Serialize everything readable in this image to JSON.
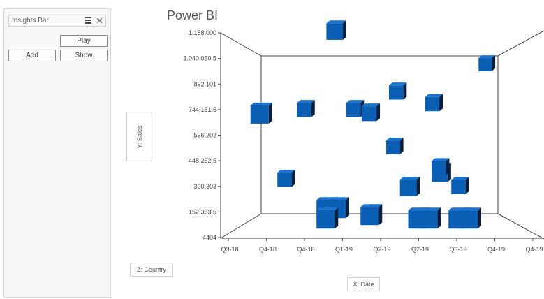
{
  "insights_bar": {
    "title": "Insights Bar",
    "menu_icon": "hamburger-icon",
    "close_icon": "close-icon",
    "play_label": "Play",
    "add_label": "Add",
    "show_label": "Show"
  },
  "chart_title": "Power BI",
  "axis_buttons": {
    "y": "Y: Sales",
    "z": "Z: Country",
    "x": "X: Date"
  },
  "colors": {
    "cube_front": "#0a5fb4",
    "cube_side": "#0b1f3d",
    "cube_top": "#1a73d0",
    "frame": "#444444"
  },
  "chart_data": {
    "type": "scatter",
    "title": "Power BI",
    "xlabel": "X: Date",
    "ylabel": "Y: Sales",
    "zlabel": "Z: Country",
    "x_categories": [
      "Q3-18",
      "Q4-18",
      "Q4-18",
      "Q1-19",
      "Q2-19",
      "Q2-19",
      "Q3-19",
      "Q4-19",
      "Q4-19"
    ],
    "y_ticks": [
      "4404",
      "152,353.5",
      "300,303",
      "448,252.5",
      "596,202",
      "744,151.5",
      "892,101",
      "1,040,050.5",
      "1,188,000"
    ],
    "ylim": [
      4404,
      1188000
    ],
    "points": [
      {
        "x": 0.7,
        "y": 665000,
        "depth": 1
      },
      {
        "x": 1.6,
        "y": 240000,
        "depth": 0.3
      },
      {
        "x": 2.2,
        "y": 720000,
        "depth": 0.3
      },
      {
        "x": 2.5,
        "y": 120000,
        "depth": 1
      },
      {
        "x": 2.8,
        "y": 120000,
        "depth": 1
      },
      {
        "x": 2.5,
        "y": 60000,
        "depth": 1
      },
      {
        "x": 2.9,
        "y": 1188000,
        "depth": 0.7
      },
      {
        "x": 3.7,
        "y": 720000,
        "depth": 0.3
      },
      {
        "x": 3.7,
        "y": 80000,
        "depth": 1
      },
      {
        "x": 4.1,
        "y": 690000,
        "depth": 0.4
      },
      {
        "x": 5.0,
        "y": 840000,
        "depth": 0.3
      },
      {
        "x": 5.0,
        "y": 460000,
        "depth": 0.2
      },
      {
        "x": 5.0,
        "y": 220000,
        "depth": 0.7
      },
      {
        "x": 5.0,
        "y": 60000,
        "depth": 1
      },
      {
        "x": 5.3,
        "y": 60000,
        "depth": 1
      },
      {
        "x": 6.1,
        "y": 760000,
        "depth": 0.3
      },
      {
        "x": 6.0,
        "y": 300000,
        "depth": 0.6
      },
      {
        "x": 6.3,
        "y": 320000,
        "depth": 0.3
      },
      {
        "x": 6.1,
        "y": 60000,
        "depth": 1
      },
      {
        "x": 6.4,
        "y": 60000,
        "depth": 1
      },
      {
        "x": 6.9,
        "y": 190000,
        "depth": 0.3
      },
      {
        "x": 8.0,
        "y": 1060000,
        "depth": 0.1
      }
    ]
  }
}
